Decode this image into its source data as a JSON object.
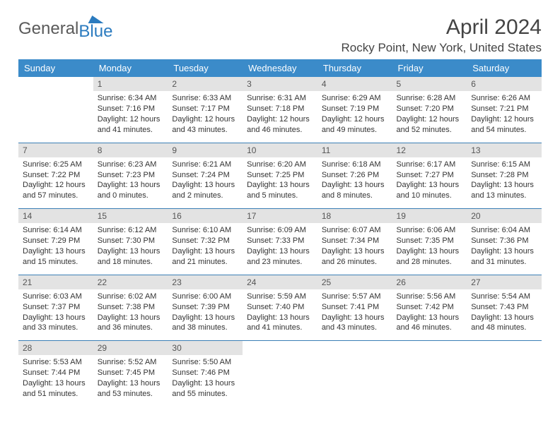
{
  "logo": {
    "general": "General",
    "blue": "Blue"
  },
  "title": "April 2024",
  "location": "Rocky Point, New York, United States",
  "colors": {
    "header_bg": "#3b8bc9",
    "header_fg": "#ffffff",
    "daynum_bg": "#e3e3e3",
    "row_border": "#3b7fb5",
    "text": "#333333",
    "logo_gray": "#5a5a5a",
    "logo_blue": "#2b7bbf"
  },
  "weekdays": [
    "Sunday",
    "Monday",
    "Tuesday",
    "Wednesday",
    "Thursday",
    "Friday",
    "Saturday"
  ],
  "weeks": [
    [
      {
        "blank": true
      },
      {
        "n": "1",
        "sr": "6:34 AM",
        "ss": "7:16 PM",
        "dl1": "12 hours",
        "dl2": "and 41 minutes."
      },
      {
        "n": "2",
        "sr": "6:33 AM",
        "ss": "7:17 PM",
        "dl1": "12 hours",
        "dl2": "and 43 minutes."
      },
      {
        "n": "3",
        "sr": "6:31 AM",
        "ss": "7:18 PM",
        "dl1": "12 hours",
        "dl2": "and 46 minutes."
      },
      {
        "n": "4",
        "sr": "6:29 AM",
        "ss": "7:19 PM",
        "dl1": "12 hours",
        "dl2": "and 49 minutes."
      },
      {
        "n": "5",
        "sr": "6:28 AM",
        "ss": "7:20 PM",
        "dl1": "12 hours",
        "dl2": "and 52 minutes."
      },
      {
        "n": "6",
        "sr": "6:26 AM",
        "ss": "7:21 PM",
        "dl1": "12 hours",
        "dl2": "and 54 minutes."
      }
    ],
    [
      {
        "n": "7",
        "sr": "6:25 AM",
        "ss": "7:22 PM",
        "dl1": "12 hours",
        "dl2": "and 57 minutes."
      },
      {
        "n": "8",
        "sr": "6:23 AM",
        "ss": "7:23 PM",
        "dl1": "13 hours",
        "dl2": "and 0 minutes."
      },
      {
        "n": "9",
        "sr": "6:21 AM",
        "ss": "7:24 PM",
        "dl1": "13 hours",
        "dl2": "and 2 minutes."
      },
      {
        "n": "10",
        "sr": "6:20 AM",
        "ss": "7:25 PM",
        "dl1": "13 hours",
        "dl2": "and 5 minutes."
      },
      {
        "n": "11",
        "sr": "6:18 AM",
        "ss": "7:26 PM",
        "dl1": "13 hours",
        "dl2": "and 8 minutes."
      },
      {
        "n": "12",
        "sr": "6:17 AM",
        "ss": "7:27 PM",
        "dl1": "13 hours",
        "dl2": "and 10 minutes."
      },
      {
        "n": "13",
        "sr": "6:15 AM",
        "ss": "7:28 PM",
        "dl1": "13 hours",
        "dl2": "and 13 minutes."
      }
    ],
    [
      {
        "n": "14",
        "sr": "6:14 AM",
        "ss": "7:29 PM",
        "dl1": "13 hours",
        "dl2": "and 15 minutes."
      },
      {
        "n": "15",
        "sr": "6:12 AM",
        "ss": "7:30 PM",
        "dl1": "13 hours",
        "dl2": "and 18 minutes."
      },
      {
        "n": "16",
        "sr": "6:10 AM",
        "ss": "7:32 PM",
        "dl1": "13 hours",
        "dl2": "and 21 minutes."
      },
      {
        "n": "17",
        "sr": "6:09 AM",
        "ss": "7:33 PM",
        "dl1": "13 hours",
        "dl2": "and 23 minutes."
      },
      {
        "n": "18",
        "sr": "6:07 AM",
        "ss": "7:34 PM",
        "dl1": "13 hours",
        "dl2": "and 26 minutes."
      },
      {
        "n": "19",
        "sr": "6:06 AM",
        "ss": "7:35 PM",
        "dl1": "13 hours",
        "dl2": "and 28 minutes."
      },
      {
        "n": "20",
        "sr": "6:04 AM",
        "ss": "7:36 PM",
        "dl1": "13 hours",
        "dl2": "and 31 minutes."
      }
    ],
    [
      {
        "n": "21",
        "sr": "6:03 AM",
        "ss": "7:37 PM",
        "dl1": "13 hours",
        "dl2": "and 33 minutes."
      },
      {
        "n": "22",
        "sr": "6:02 AM",
        "ss": "7:38 PM",
        "dl1": "13 hours",
        "dl2": "and 36 minutes."
      },
      {
        "n": "23",
        "sr": "6:00 AM",
        "ss": "7:39 PM",
        "dl1": "13 hours",
        "dl2": "and 38 minutes."
      },
      {
        "n": "24",
        "sr": "5:59 AM",
        "ss": "7:40 PM",
        "dl1": "13 hours",
        "dl2": "and 41 minutes."
      },
      {
        "n": "25",
        "sr": "5:57 AM",
        "ss": "7:41 PM",
        "dl1": "13 hours",
        "dl2": "and 43 minutes."
      },
      {
        "n": "26",
        "sr": "5:56 AM",
        "ss": "7:42 PM",
        "dl1": "13 hours",
        "dl2": "and 46 minutes."
      },
      {
        "n": "27",
        "sr": "5:54 AM",
        "ss": "7:43 PM",
        "dl1": "13 hours",
        "dl2": "and 48 minutes."
      }
    ],
    [
      {
        "n": "28",
        "sr": "5:53 AM",
        "ss": "7:44 PM",
        "dl1": "13 hours",
        "dl2": "and 51 minutes."
      },
      {
        "n": "29",
        "sr": "5:52 AM",
        "ss": "7:45 PM",
        "dl1": "13 hours",
        "dl2": "and 53 minutes."
      },
      {
        "n": "30",
        "sr": "5:50 AM",
        "ss": "7:46 PM",
        "dl1": "13 hours",
        "dl2": "and 55 minutes."
      },
      {
        "blank": true
      },
      {
        "blank": true
      },
      {
        "blank": true
      },
      {
        "blank": true
      }
    ]
  ],
  "labels": {
    "sunrise": "Sunrise:",
    "sunset": "Sunset:",
    "daylight": "Daylight:"
  }
}
